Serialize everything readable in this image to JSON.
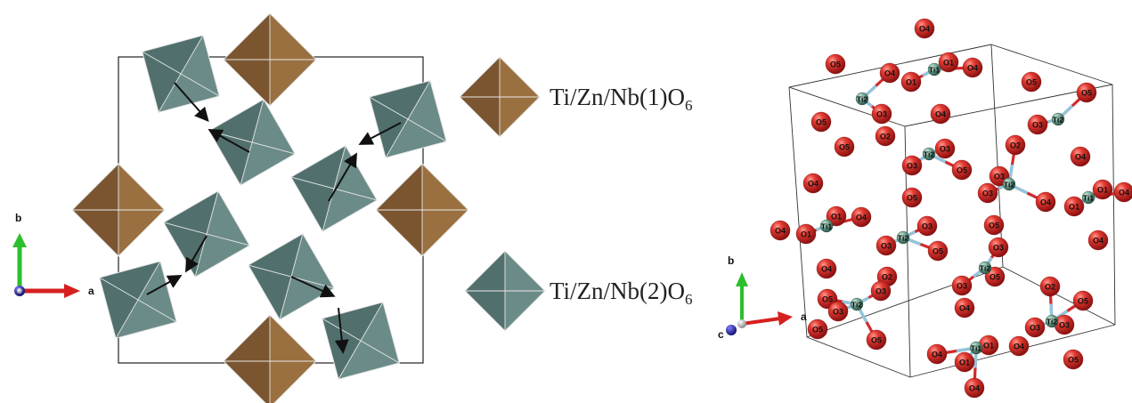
{
  "colors": {
    "octa1": "#7a5530",
    "octa1_light": "#9a7040",
    "octa2": "#51706d",
    "octa2_light": "#6b8b88",
    "oxygen": "#d32a2a",
    "titanium": "#6f9f8e",
    "bond": "#8ec8e0",
    "axis_a": "#d62020",
    "axis_b": "#2cbf2c",
    "axis_c": "#1a1a9a"
  },
  "left_panel": {
    "axes": {
      "a": "a",
      "b": "b"
    },
    "legend": [
      {
        "label_main": "Ti/Zn/Nb(1)O",
        "label_sub": "6",
        "color_key": "octa1"
      },
      {
        "label_main": "Ti/Zn/Nb(2)O",
        "label_sub": "6",
        "color_key": "octa2"
      }
    ]
  },
  "right_panel": {
    "axes": {
      "a": "a",
      "b": "b",
      "c": "c"
    },
    "oxygen_labels": [
      "O1",
      "O2",
      "O3",
      "O4",
      "O5"
    ],
    "titanium_labels": [
      "Ti1",
      "Ti2"
    ]
  }
}
